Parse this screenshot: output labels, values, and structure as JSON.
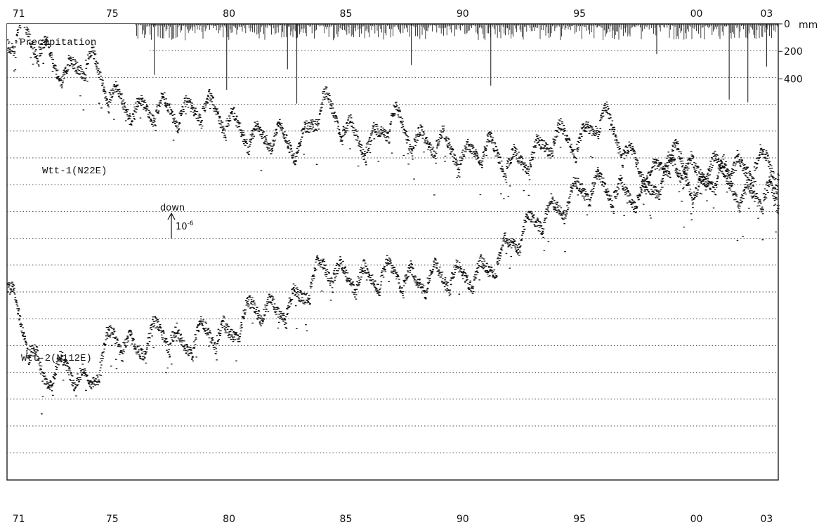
{
  "chart_data": {
    "type": "scatter",
    "title": "",
    "x_ticks": [
      "71",
      "75",
      "80",
      "85",
      "90",
      "95",
      "00",
      "03"
    ],
    "x_tick_years": [
      1971,
      1975,
      1980,
      1985,
      1990,
      1995,
      2000,
      2003
    ],
    "xlim": [
      1970.5,
      2003.5
    ],
    "grid": true,
    "precipitation": {
      "label": "Precipitation",
      "unit": "mm",
      "axis_ticks": [
        "0",
        "200",
        "400"
      ],
      "axis_values": [
        0,
        200,
        400
      ],
      "start_year": 1976,
      "peaks": [
        {
          "year": 1976.8,
          "mm": 370
        },
        {
          "year": 1979.9,
          "mm": 480
        },
        {
          "year": 1982.5,
          "mm": 330
        },
        {
          "year": 1982.9,
          "mm": 580
        },
        {
          "year": 1987.8,
          "mm": 300
        },
        {
          "year": 1991.2,
          "mm": 450
        },
        {
          "year": 1998.3,
          "mm": 220
        },
        {
          "year": 2001.4,
          "mm": 550
        },
        {
          "year": 2002.2,
          "mm": 570
        },
        {
          "year": 2003.0,
          "mm": 310
        }
      ]
    },
    "scale_bar": {
      "label_top": "down",
      "label_value": "10",
      "label_exp": "-6"
    },
    "series": [
      {
        "name": "Wtt-1(N22E)",
        "points": [
          [
            1970.5,
            1.0
          ],
          [
            1971.0,
            0.5
          ],
          [
            1972.0,
            1.2
          ],
          [
            1973.0,
            2.2
          ],
          [
            1974.0,
            1.5
          ],
          [
            1975.0,
            3.0
          ],
          [
            1976.0,
            3.5
          ],
          [
            1977.0,
            3.4
          ],
          [
            1978.0,
            3.6
          ],
          [
            1979.0,
            3.3
          ],
          [
            1980.0,
            3.9
          ],
          [
            1981.0,
            4.5
          ],
          [
            1982.0,
            4.4
          ],
          [
            1983.0,
            4.9
          ],
          [
            1984.0,
            3.1
          ],
          [
            1985.0,
            4.2
          ],
          [
            1986.0,
            4.8
          ],
          [
            1987.0,
            3.7
          ],
          [
            1988.0,
            4.7
          ],
          [
            1989.0,
            4.6
          ],
          [
            1990.0,
            5.3
          ],
          [
            1991.0,
            4.8
          ],
          [
            1992.0,
            5.5
          ],
          [
            1993.0,
            5.2
          ],
          [
            1994.0,
            4.4
          ],
          [
            1995.0,
            4.7
          ],
          [
            1996.0,
            3.6
          ],
          [
            1997.0,
            5.1
          ],
          [
            1998.0,
            6.0
          ],
          [
            1999.0,
            5.0
          ],
          [
            2000.0,
            6.6
          ],
          [
            2001.0,
            5.7
          ],
          [
            2002.0,
            6.8
          ],
          [
            2003.0,
            6.5
          ],
          [
            2003.5,
            7.2
          ]
        ]
      },
      {
        "name": "Wtt-2(N112E)",
        "points": [
          [
            1970.5,
            10.0
          ],
          [
            1971.0,
            11.2
          ],
          [
            1972.0,
            13.5
          ],
          [
            1973.0,
            13.0
          ],
          [
            1974.0,
            13.8
          ],
          [
            1975.0,
            11.8
          ],
          [
            1976.0,
            12.5
          ],
          [
            1977.0,
            11.6
          ],
          [
            1978.0,
            12.3
          ],
          [
            1979.0,
            11.7
          ],
          [
            1980.0,
            11.9
          ],
          [
            1981.0,
            10.8
          ],
          [
            1982.0,
            11.0
          ],
          [
            1983.0,
            10.5
          ],
          [
            1984.0,
            9.3
          ],
          [
            1985.0,
            9.7
          ],
          [
            1986.0,
            9.8
          ],
          [
            1987.0,
            9.5
          ],
          [
            1988.0,
            9.9
          ],
          [
            1989.0,
            9.6
          ],
          [
            1990.0,
            9.7
          ],
          [
            1991.0,
            9.5
          ],
          [
            1992.0,
            8.5
          ],
          [
            1993.0,
            7.6
          ],
          [
            1994.0,
            7.2
          ],
          [
            1995.0,
            6.4
          ],
          [
            1996.0,
            6.3
          ],
          [
            1997.0,
            6.7
          ],
          [
            1998.0,
            6.5
          ],
          [
            1999.0,
            5.5
          ],
          [
            2000.0,
            5.8
          ],
          [
            2001.0,
            5.6
          ],
          [
            2002.0,
            5.7
          ],
          [
            2003.0,
            5.3
          ],
          [
            2003.5,
            5.9
          ]
        ]
      }
    ]
  }
}
